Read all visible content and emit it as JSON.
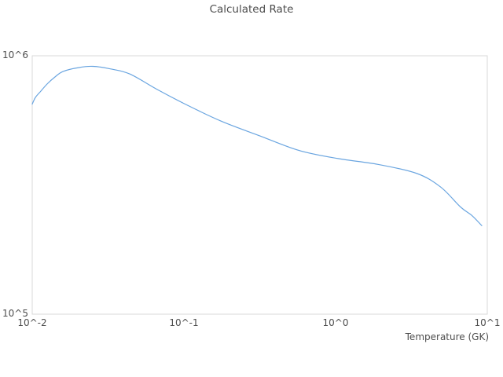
{
  "chart_data": {
    "type": "line",
    "title": "Calculated Rate",
    "xlabel": "Temperature (GK)",
    "ylabel": "",
    "x_scale": "log",
    "y_scale": "log",
    "xlim": [
      0.01,
      10
    ],
    "ylim": [
      100000,
      1000000
    ],
    "grid": false,
    "legend": false,
    "line_color": "#6aa5e0",
    "border_color": "#d9d9d9",
    "text_color": "#4d4d4d",
    "x_tick_labels": [
      "10^-2",
      "10^-1",
      "10^0",
      "10^1"
    ],
    "x_tick_values": [
      0.01,
      0.1,
      1,
      10
    ],
    "y_tick_labels": [
      "10^5",
      "10^6"
    ],
    "y_tick_values": [
      100000,
      1000000
    ],
    "series": [
      {
        "name": "calculated-rate",
        "x": [
          0.01,
          0.0105,
          0.0114,
          0.0126,
          0.0142,
          0.016,
          0.0202,
          0.0251,
          0.0327,
          0.044,
          0.0668,
          0.102,
          0.174,
          0.316,
          0.575,
          1.04,
          1.9,
          3.45,
          4.94,
          6.66,
          7.97,
          9.2
        ],
        "y": [
          650000,
          690000,
          730000,
          780000,
          830000,
          870000,
          900000,
          910000,
          890000,
          850000,
          740000,
          650000,
          560000,
          490000,
          430000,
          400000,
          380000,
          350000,
          310000,
          260000,
          240000,
          220000
        ]
      }
    ]
  }
}
